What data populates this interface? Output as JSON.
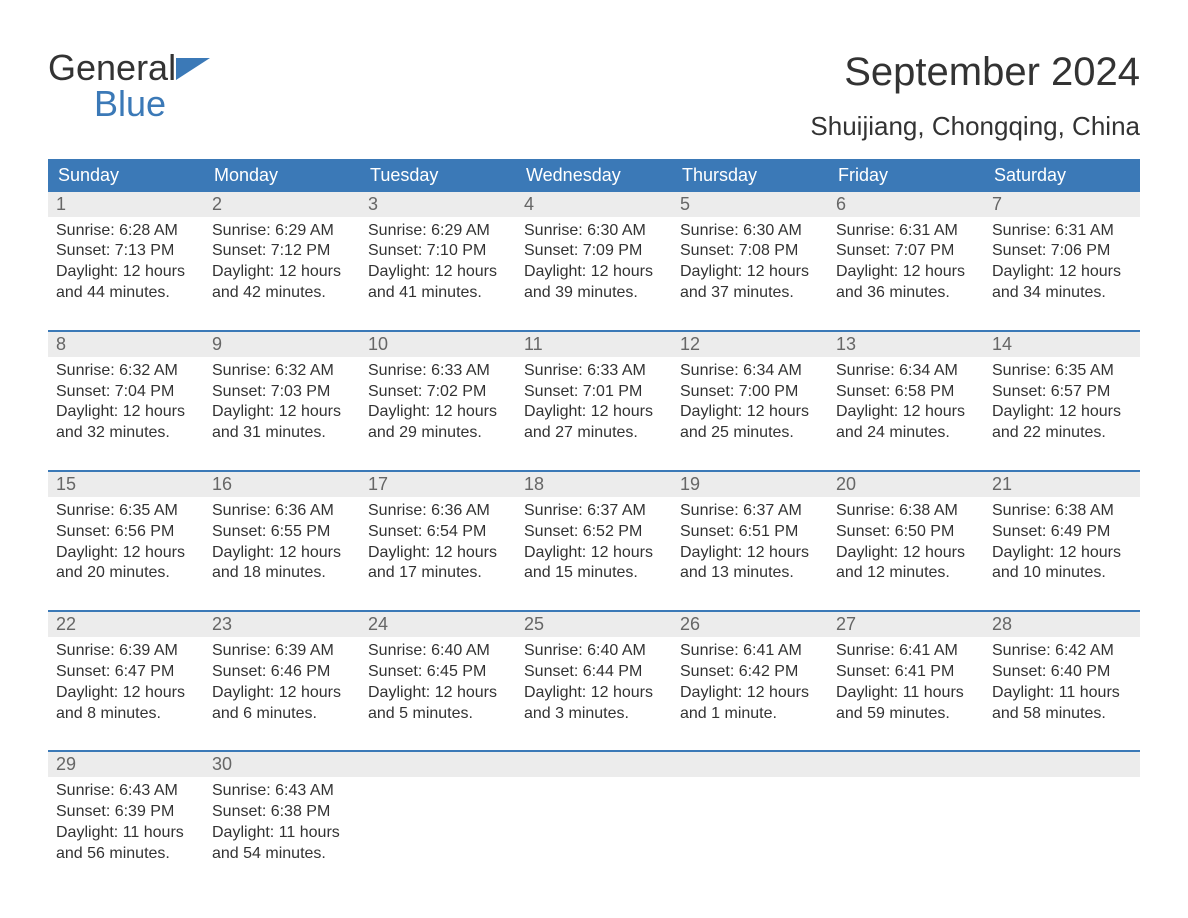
{
  "logo": {
    "word1": "General",
    "word2": "Blue"
  },
  "title": "September 2024",
  "subtitle": "Shuijiang, Chongqing, China",
  "colors": {
    "brand_blue": "#3b79b7",
    "header_row_bg": "#3b79b7",
    "header_row_text": "#ffffff",
    "daynum_bg": "#ececec",
    "daynum_text": "#666666",
    "body_text": "#333333",
    "background": "#ffffff"
  },
  "weekdays": [
    "Sunday",
    "Monday",
    "Tuesday",
    "Wednesday",
    "Thursday",
    "Friday",
    "Saturday"
  ],
  "weeks": [
    [
      {
        "n": "1",
        "sunrise": "Sunrise: 6:28 AM",
        "sunset": "Sunset: 7:13 PM",
        "daylight": "Daylight: 12 hours and 44 minutes."
      },
      {
        "n": "2",
        "sunrise": "Sunrise: 6:29 AM",
        "sunset": "Sunset: 7:12 PM",
        "daylight": "Daylight: 12 hours and 42 minutes."
      },
      {
        "n": "3",
        "sunrise": "Sunrise: 6:29 AM",
        "sunset": "Sunset: 7:10 PM",
        "daylight": "Daylight: 12 hours and 41 minutes."
      },
      {
        "n": "4",
        "sunrise": "Sunrise: 6:30 AM",
        "sunset": "Sunset: 7:09 PM",
        "daylight": "Daylight: 12 hours and 39 minutes."
      },
      {
        "n": "5",
        "sunrise": "Sunrise: 6:30 AM",
        "sunset": "Sunset: 7:08 PM",
        "daylight": "Daylight: 12 hours and 37 minutes."
      },
      {
        "n": "6",
        "sunrise": "Sunrise: 6:31 AM",
        "sunset": "Sunset: 7:07 PM",
        "daylight": "Daylight: 12 hours and 36 minutes."
      },
      {
        "n": "7",
        "sunrise": "Sunrise: 6:31 AM",
        "sunset": "Sunset: 7:06 PM",
        "daylight": "Daylight: 12 hours and 34 minutes."
      }
    ],
    [
      {
        "n": "8",
        "sunrise": "Sunrise: 6:32 AM",
        "sunset": "Sunset: 7:04 PM",
        "daylight": "Daylight: 12 hours and 32 minutes."
      },
      {
        "n": "9",
        "sunrise": "Sunrise: 6:32 AM",
        "sunset": "Sunset: 7:03 PM",
        "daylight": "Daylight: 12 hours and 31 minutes."
      },
      {
        "n": "10",
        "sunrise": "Sunrise: 6:33 AM",
        "sunset": "Sunset: 7:02 PM",
        "daylight": "Daylight: 12 hours and 29 minutes."
      },
      {
        "n": "11",
        "sunrise": "Sunrise: 6:33 AM",
        "sunset": "Sunset: 7:01 PM",
        "daylight": "Daylight: 12 hours and 27 minutes."
      },
      {
        "n": "12",
        "sunrise": "Sunrise: 6:34 AM",
        "sunset": "Sunset: 7:00 PM",
        "daylight": "Daylight: 12 hours and 25 minutes."
      },
      {
        "n": "13",
        "sunrise": "Sunrise: 6:34 AM",
        "sunset": "Sunset: 6:58 PM",
        "daylight": "Daylight: 12 hours and 24 minutes."
      },
      {
        "n": "14",
        "sunrise": "Sunrise: 6:35 AM",
        "sunset": "Sunset: 6:57 PM",
        "daylight": "Daylight: 12 hours and 22 minutes."
      }
    ],
    [
      {
        "n": "15",
        "sunrise": "Sunrise: 6:35 AM",
        "sunset": "Sunset: 6:56 PM",
        "daylight": "Daylight: 12 hours and 20 minutes."
      },
      {
        "n": "16",
        "sunrise": "Sunrise: 6:36 AM",
        "sunset": "Sunset: 6:55 PM",
        "daylight": "Daylight: 12 hours and 18 minutes."
      },
      {
        "n": "17",
        "sunrise": "Sunrise: 6:36 AM",
        "sunset": "Sunset: 6:54 PM",
        "daylight": "Daylight: 12 hours and 17 minutes."
      },
      {
        "n": "18",
        "sunrise": "Sunrise: 6:37 AM",
        "sunset": "Sunset: 6:52 PM",
        "daylight": "Daylight: 12 hours and 15 minutes."
      },
      {
        "n": "19",
        "sunrise": "Sunrise: 6:37 AM",
        "sunset": "Sunset: 6:51 PM",
        "daylight": "Daylight: 12 hours and 13 minutes."
      },
      {
        "n": "20",
        "sunrise": "Sunrise: 6:38 AM",
        "sunset": "Sunset: 6:50 PM",
        "daylight": "Daylight: 12 hours and 12 minutes."
      },
      {
        "n": "21",
        "sunrise": "Sunrise: 6:38 AM",
        "sunset": "Sunset: 6:49 PM",
        "daylight": "Daylight: 12 hours and 10 minutes."
      }
    ],
    [
      {
        "n": "22",
        "sunrise": "Sunrise: 6:39 AM",
        "sunset": "Sunset: 6:47 PM",
        "daylight": "Daylight: 12 hours and 8 minutes."
      },
      {
        "n": "23",
        "sunrise": "Sunrise: 6:39 AM",
        "sunset": "Sunset: 6:46 PM",
        "daylight": "Daylight: 12 hours and 6 minutes."
      },
      {
        "n": "24",
        "sunrise": "Sunrise: 6:40 AM",
        "sunset": "Sunset: 6:45 PM",
        "daylight": "Daylight: 12 hours and 5 minutes."
      },
      {
        "n": "25",
        "sunrise": "Sunrise: 6:40 AM",
        "sunset": "Sunset: 6:44 PM",
        "daylight": "Daylight: 12 hours and 3 minutes."
      },
      {
        "n": "26",
        "sunrise": "Sunrise: 6:41 AM",
        "sunset": "Sunset: 6:42 PM",
        "daylight": "Daylight: 12 hours and 1 minute."
      },
      {
        "n": "27",
        "sunrise": "Sunrise: 6:41 AM",
        "sunset": "Sunset: 6:41 PM",
        "daylight": "Daylight: 11 hours and 59 minutes."
      },
      {
        "n": "28",
        "sunrise": "Sunrise: 6:42 AM",
        "sunset": "Sunset: 6:40 PM",
        "daylight": "Daylight: 11 hours and 58 minutes."
      }
    ],
    [
      {
        "n": "29",
        "sunrise": "Sunrise: 6:43 AM",
        "sunset": "Sunset: 6:39 PM",
        "daylight": "Daylight: 11 hours and 56 minutes."
      },
      {
        "n": "30",
        "sunrise": "Sunrise: 6:43 AM",
        "sunset": "Sunset: 6:38 PM",
        "daylight": "Daylight: 11 hours and 54 minutes."
      },
      {
        "n": "",
        "sunrise": "",
        "sunset": "",
        "daylight": ""
      },
      {
        "n": "",
        "sunrise": "",
        "sunset": "",
        "daylight": ""
      },
      {
        "n": "",
        "sunrise": "",
        "sunset": "",
        "daylight": ""
      },
      {
        "n": "",
        "sunrise": "",
        "sunset": "",
        "daylight": ""
      },
      {
        "n": "",
        "sunrise": "",
        "sunset": "",
        "daylight": ""
      }
    ]
  ]
}
